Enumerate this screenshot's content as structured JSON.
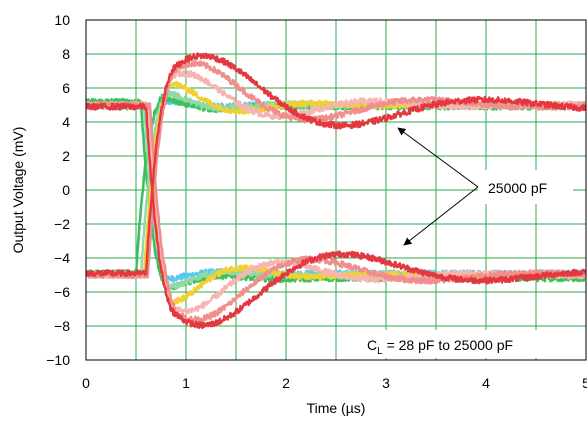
{
  "chart_data": {
    "type": "line",
    "xlabel": "Time (µs)",
    "ylabel": "Output Voltage (mV)",
    "xlim": [
      0,
      5
    ],
    "ylim": [
      -10,
      10
    ],
    "x_ticks": [
      0,
      1,
      2,
      3,
      4,
      5
    ],
    "x_tick_labels": [
      "0",
      "1",
      "2",
      "3",
      "4",
      "5"
    ],
    "y_ticks": [
      10,
      8,
      6,
      4,
      2,
      0,
      -2,
      -4,
      -6,
      -8,
      -10
    ],
    "y_tick_labels": [
      "10",
      "8",
      "6",
      "4",
      "2",
      "0",
      "−2",
      "−4",
      "−6",
      "−8",
      "−10"
    ],
    "grid": true,
    "grid_color": "#2ea84a",
    "annotations": {
      "arrow_label": "25000 pF",
      "range_label_prefix": "C",
      "range_label_subscript": "L",
      "range_label_suffix": " = 28 pF to 25000 pF"
    },
    "series": [
      {
        "color": "#5bc8f0",
        "rising": {
          "t0": 0.55,
          "v0": 4.9,
          "v1": 4.9,
          "amp": 0.6,
          "tau": 0.45,
          "period": 1.2
        },
        "falling": {
          "t0": 0.5,
          "v0": -5.0,
          "v1": -5.0,
          "amp": 0.5,
          "tau": 0.45,
          "period": 1.2
        }
      },
      {
        "color": "#3cc05a",
        "rising": {
          "t0": 0.55,
          "v0": 5.2,
          "v1": 5.1,
          "amp": 1.0,
          "tau": 0.45,
          "period": 1.2
        },
        "falling": {
          "t0": 0.5,
          "v0": -4.9,
          "v1": -5.2,
          "amp": 1.0,
          "tau": 0.45,
          "period": 1.2
        }
      },
      {
        "color": "#8fd9a8",
        "rising": {
          "t0": 0.58,
          "v0": 5.0,
          "v1": 5.0,
          "amp": 1.3,
          "tau": 0.45,
          "period": 1.2
        },
        "falling": {
          "t0": 0.55,
          "v0": -5.0,
          "v1": -5.0,
          "amp": 1.3,
          "tau": 0.45,
          "period": 1.2
        }
      },
      {
        "color": "#f2d034",
        "rising": {
          "t0": 0.6,
          "v0": 5.0,
          "v1": 5.0,
          "amp": 2.7,
          "tau": 0.55,
          "period": 1.4
        },
        "falling": {
          "t0": 0.58,
          "v0": -5.0,
          "v1": -5.0,
          "amp": 2.2,
          "tau": 0.55,
          "period": 1.4
        }
      },
      {
        "color": "#f7b5b2",
        "rising": {
          "t0": 0.62,
          "v0": 5.0,
          "v1": 5.0,
          "amp": 3.4,
          "tau": 0.9,
          "period": 1.9
        },
        "falling": {
          "t0": 0.6,
          "v0": -5.0,
          "v1": -5.0,
          "amp": 3.0,
          "tau": 0.9,
          "period": 1.9
        }
      },
      {
        "color": "#ef8e8c",
        "rising": {
          "t0": 0.64,
          "v0": 5.0,
          "v1": 5.0,
          "amp": 4.2,
          "tau": 1.1,
          "period": 2.3
        },
        "falling": {
          "t0": 0.62,
          "v0": -5.0,
          "v1": -5.0,
          "amp": 3.9,
          "tau": 1.1,
          "period": 2.3
        }
      },
      {
        "color": "#e3383f",
        "rising": {
          "t0": 0.6,
          "v0": 4.9,
          "v1": 4.9,
          "amp": 4.8,
          "tau": 1.4,
          "period": 2.8
        },
        "falling": {
          "t0": 0.6,
          "v0": -4.9,
          "v1": -4.9,
          "amp": 4.7,
          "tau": 1.4,
          "period": 2.8
        }
      }
    ]
  }
}
